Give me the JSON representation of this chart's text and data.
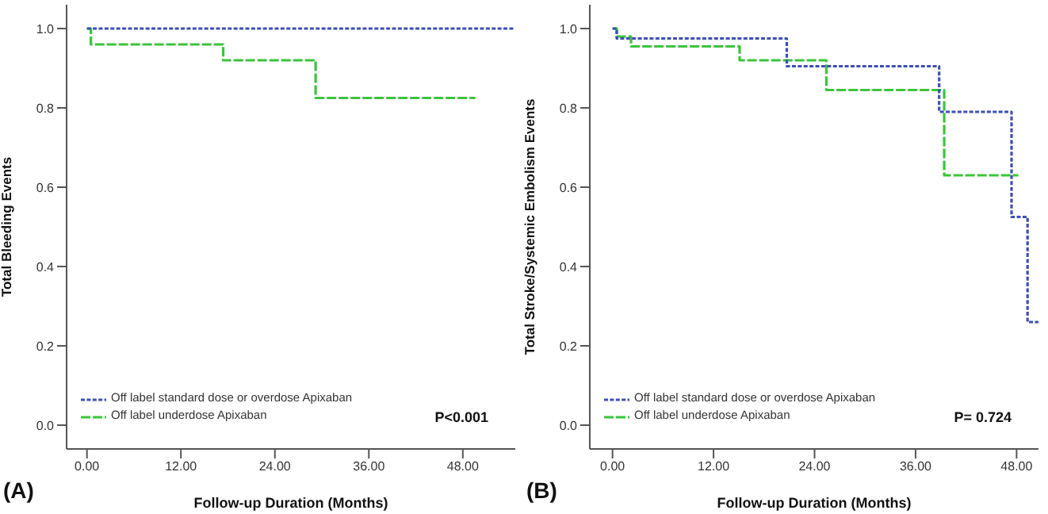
{
  "chart_data": [
    {
      "type": "step",
      "xlabel": "Follow-up Duration (Months)",
      "ylabel": "Total Bleeding Events",
      "annotations": [
        "(A)",
        "P<0.001"
      ],
      "xlim": [
        -2.6,
        54.7
      ],
      "ylim": [
        -0.06,
        1.06
      ],
      "xticks": [
        {
          "value": 0,
          "label": "0.00"
        },
        {
          "value": 12,
          "label": "12.00"
        },
        {
          "value": 24,
          "label": "24.00"
        },
        {
          "value": 36,
          "label": "36.00"
        },
        {
          "value": 48,
          "label": "48.00"
        }
      ],
      "yticks": [
        {
          "value": 0,
          "label": "0.0"
        },
        {
          "value": 0.2,
          "label": "0.2"
        },
        {
          "value": 0.4,
          "label": "0.4"
        },
        {
          "value": 0.6,
          "label": "0.6"
        },
        {
          "value": 0.8,
          "label": "0.8"
        },
        {
          "value": 1,
          "label": "1.0"
        }
      ],
      "grid": false,
      "legend": "bottom left",
      "marker": "none",
      "series": [
        {
          "name": "Off label standard dose or overdose Apixaban",
          "color": "#3d4fb5",
          "line_style": "dotted",
          "x": [
            0,
            54.5
          ],
          "values": [
            1.0,
            1.0
          ]
        },
        {
          "name": "Off label underdose Apixaban",
          "color": "#3cc43c",
          "line_style": "dashed",
          "x": [
            0,
            0.5,
            17.4,
            29.2,
            49.6
          ],
          "values": [
            1.0,
            0.96,
            0.92,
            0.825,
            0.825
          ]
        }
      ]
    },
    {
      "type": "step",
      "xlabel": "Follow-up Duration (Months)",
      "ylabel": "Total Stroke/Systemic Embolism Events",
      "annotations": [
        "(B)",
        "P= 0.724"
      ],
      "xlim": [
        -2.7,
        50.6
      ],
      "ylim": [
        -0.06,
        1.06
      ],
      "xticks": [
        {
          "value": 0,
          "label": "0.00"
        },
        {
          "value": 12,
          "label": "12.00"
        },
        {
          "value": 24,
          "label": "24.00"
        },
        {
          "value": 36,
          "label": "36.00"
        },
        {
          "value": 48,
          "label": "48.00"
        }
      ],
      "yticks": [
        {
          "value": 0,
          "label": "0.0"
        },
        {
          "value": 0.2,
          "label": "0.2"
        },
        {
          "value": 0.4,
          "label": "0.4"
        },
        {
          "value": 0.6,
          "label": "0.6"
        },
        {
          "value": 0.8,
          "label": "0.8"
        },
        {
          "value": 1,
          "label": "1.0"
        }
      ],
      "grid": false,
      "legend": "bottom left",
      "marker": "none",
      "series": [
        {
          "name": "Off label standard dose or overdose Apixaban",
          "color": "#3d4fb5",
          "line_style": "dotted",
          "x": [
            0,
            0.5,
            20.7,
            38.8,
            47.4,
            49.3,
            50.6
          ],
          "values": [
            1.0,
            0.975,
            0.905,
            0.79,
            0.525,
            0.26,
            0.26
          ]
        },
        {
          "name": "Off label underdose Apixaban",
          "color": "#3cc43c",
          "line_style": "dashed",
          "x": [
            0,
            0.5,
            2.2,
            15.1,
            25.4,
            39.4,
            48.2
          ],
          "values": [
            1.0,
            0.98,
            0.955,
            0.92,
            0.845,
            0.63,
            0.63
          ]
        }
      ]
    }
  ]
}
